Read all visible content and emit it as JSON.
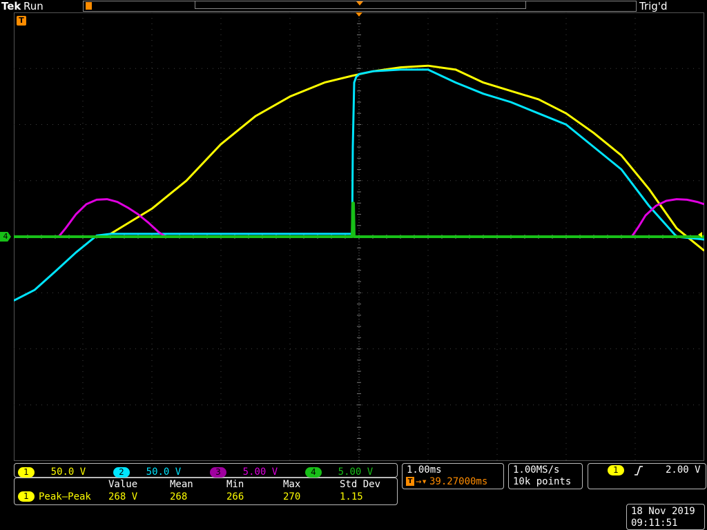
{
  "header": {
    "brand": "Tek",
    "state": "Run",
    "trigger_status": "Trig'd"
  },
  "channels": [
    {
      "id": "1",
      "scale": "50.0 V",
      "color": "#ffff00"
    },
    {
      "id": "2",
      "scale": "50.0 V",
      "color": "#00e5ff"
    },
    {
      "id": "3",
      "scale": "5.00 V",
      "color": "#e000e0"
    },
    {
      "id": "4",
      "scale": "5.00 V",
      "color": "#18c018"
    }
  ],
  "ground_marker": "4",
  "trigger_marker": "T",
  "measurements": {
    "headers": [
      "Value",
      "Mean",
      "Min",
      "Max",
      "Std Dev"
    ],
    "row": {
      "channel": "1",
      "name": "Peak–Peak",
      "value": "268 V",
      "mean": "268",
      "min": "266",
      "max": "270",
      "std_dev": "1.15"
    }
  },
  "horizontal": {
    "timebase": "1.00ms",
    "delay_icon": "T",
    "delay": "39.27000ms"
  },
  "acquisition": {
    "sample_rate": "1.00MS/s",
    "record_length": "10k points"
  },
  "trigger": {
    "source": "1",
    "slope_icon": "rising-edge-icon",
    "level": "2.00 V"
  },
  "datetime": {
    "date": "18 Nov 2019",
    "time": "09:11:51"
  },
  "chart_data": {
    "type": "line",
    "x_divisions": 10,
    "y_divisions": 8,
    "ylim": [
      -4,
      4
    ],
    "grid": true,
    "series": [
      {
        "name": "1",
        "color": "#ffff00",
        "x": [
          1.4,
          2.0,
          2.5,
          3.0,
          3.5,
          4.0,
          4.5,
          4.9,
          5.2,
          5.6,
          6.0,
          6.4,
          6.8,
          7.2,
          7.6,
          8.0,
          8.4,
          8.8,
          9.2,
          9.6,
          10.0
        ],
        "y": [
          0.05,
          0.5,
          1.0,
          1.65,
          2.15,
          2.5,
          2.75,
          2.87,
          2.95,
          3.02,
          3.05,
          2.98,
          2.75,
          2.6,
          2.45,
          2.2,
          1.85,
          1.45,
          0.85,
          0.15,
          -0.25
        ]
      },
      {
        "name": "2",
        "color": "#00e5ff",
        "x": [
          0.0,
          0.3,
          0.6,
          0.9,
          1.2,
          1.4,
          1.7,
          2.0,
          4.9,
          4.91,
          4.93,
          4.96,
          5.0,
          5.2,
          5.6,
          6.0,
          6.4,
          6.8,
          7.2,
          7.6,
          8.0,
          8.4,
          8.8,
          9.2,
          9.6,
          10.0
        ],
        "y": [
          -1.14,
          -0.95,
          -0.62,
          -0.28,
          0.02,
          0.05,
          0.05,
          0.05,
          0.05,
          1.6,
          2.75,
          2.85,
          2.9,
          2.95,
          2.98,
          2.98,
          2.75,
          2.55,
          2.4,
          2.2,
          2.0,
          1.6,
          1.2,
          0.55,
          0.0,
          -0.05
        ]
      },
      {
        "name": "3",
        "color": "#e000e0",
        "x": [
          0.0,
          0.65,
          0.75,
          0.9,
          1.05,
          1.2,
          1.35,
          1.5,
          1.65,
          1.8,
          1.95,
          2.1,
          2.2,
          2.3,
          8.95,
          9.05,
          9.15,
          9.3,
          9.45,
          9.6,
          9.75,
          9.9,
          10.0
        ],
        "y": [
          0.0,
          0.0,
          0.15,
          0.4,
          0.58,
          0.66,
          0.67,
          0.62,
          0.52,
          0.4,
          0.25,
          0.08,
          0.0,
          0.0,
          0.0,
          0.18,
          0.38,
          0.55,
          0.64,
          0.67,
          0.66,
          0.62,
          0.58
        ]
      },
      {
        "name": "4",
        "color": "#18c018",
        "x": [
          0.0,
          4.9,
          4.91,
          4.92,
          4.93,
          10.0
        ],
        "y": [
          0.0,
          0.0,
          0.6,
          0.6,
          0.0,
          0.0
        ]
      }
    ]
  }
}
